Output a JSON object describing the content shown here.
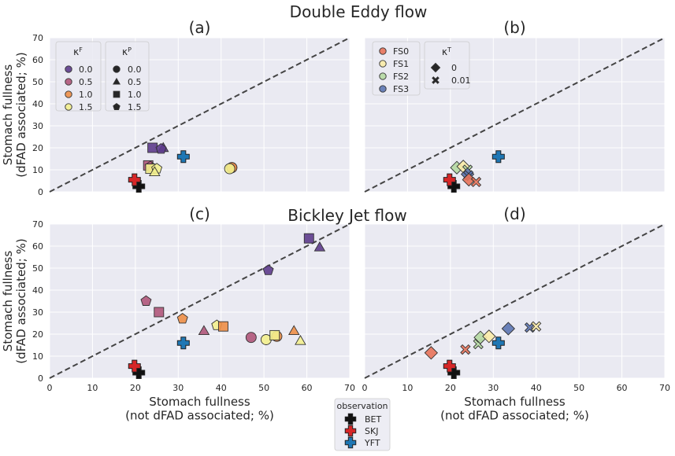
{
  "figure": {
    "suptitle_top": "Double Eddy flow",
    "suptitle_middle": "Bickley Jet flow"
  },
  "colors": {
    "panel_bg": "#EAEAF2",
    "grid": "#FFFFFF",
    "kF": {
      "0.0": "#5E3C8C",
      "0.5": "#B0567A",
      "1.0": "#EE8F47",
      "1.5": "#F3EF8E"
    },
    "FS": {
      "FS0": "#E8735A",
      "FS1": "#FAEBA7",
      "FS2": "#B5D9A2",
      "FS3": "#5C75B3"
    },
    "obs": {
      "BET": "#111111",
      "SKJ": "#D62728",
      "YFT": "#1F77B4"
    },
    "kT_marker": "#111111"
  },
  "legends": {
    "kF": {
      "title": "κ",
      "title_sup": "F",
      "items": [
        "0.0",
        "0.5",
        "1.0",
        "1.5"
      ]
    },
    "kP": {
      "title": "κ",
      "title_sup": "P",
      "items": [
        {
          "label": "0.0",
          "marker": "circle"
        },
        {
          "label": "0.5",
          "marker": "triangle"
        },
        {
          "label": "1.0",
          "marker": "square"
        },
        {
          "label": "1.5",
          "marker": "pentagon"
        }
      ]
    },
    "FS": {
      "items": [
        "FS0",
        "FS1",
        "FS2",
        "FS3"
      ]
    },
    "kT": {
      "title": "κ",
      "title_sup": "T",
      "items": [
        {
          "label": "0",
          "marker": "diamond"
        },
        {
          "label": "0.01",
          "marker": "x"
        }
      ]
    },
    "observation": {
      "title": "observation",
      "items": [
        "BET",
        "SKJ",
        "YFT"
      ]
    }
  },
  "chart_data": [
    {
      "panel": "(a)",
      "type": "scatter",
      "title": "(a)",
      "xlabel": "",
      "ylabel": [
        "Stomach fullness",
        "(dFAD associated; %)"
      ],
      "xlim": [
        0,
        70
      ],
      "ylim": [
        0,
        70
      ],
      "xticks": [
        0,
        10,
        20,
        30,
        40,
        50,
        60,
        70
      ],
      "yticks": [
        0,
        10,
        20,
        30,
        40,
        50,
        60,
        70
      ],
      "show_xticklabels": false,
      "show_yticklabels": true,
      "grid": true,
      "reference_line": "y = x (dashed)",
      "points": [
        {
          "x": 26.5,
          "y": 20,
          "kF": "0.0",
          "kP": "triangle"
        },
        {
          "x": 24,
          "y": 20,
          "kF": "0.0",
          "kP": "square"
        },
        {
          "x": 26,
          "y": 19.5,
          "kF": "0.0",
          "kP": "pentagon"
        },
        {
          "x": 23,
          "y": 12,
          "kF": "0.5",
          "kP": "square"
        },
        {
          "x": 23.5,
          "y": 11.5,
          "kF": "0.5",
          "kP": "pentagon"
        },
        {
          "x": 24,
          "y": 11,
          "kF": "1.0",
          "kP": "triangle"
        },
        {
          "x": 23.5,
          "y": 10.5,
          "kF": "1.5",
          "kP": "square"
        },
        {
          "x": 25,
          "y": 10.5,
          "kF": "1.5",
          "kP": "pentagon"
        },
        {
          "x": 24.5,
          "y": 9,
          "kF": "1.5",
          "kP": "triangle"
        },
        {
          "x": 42.5,
          "y": 11,
          "kF": "0.5",
          "kP": "circle"
        },
        {
          "x": 42.5,
          "y": 11,
          "kF": "1.0",
          "kP": "circle"
        },
        {
          "x": 42,
          "y": 10.5,
          "kF": "1.5",
          "kP": "circle"
        }
      ],
      "observations": [
        {
          "name": "BET",
          "x": 20.8,
          "y": 2.5
        },
        {
          "name": "SKJ",
          "x": 19.8,
          "y": 5.5
        },
        {
          "name": "YFT",
          "x": 31.2,
          "y": 16
        }
      ],
      "legends": [
        "kF",
        "kP"
      ]
    },
    {
      "panel": "(b)",
      "type": "scatter",
      "title": "(b)",
      "xlabel": "",
      "ylabel": "",
      "xlim": [
        0,
        70
      ],
      "ylim": [
        0,
        70
      ],
      "xticks": [
        0,
        10,
        20,
        30,
        40,
        50,
        60,
        70
      ],
      "yticks": [
        0,
        10,
        20,
        30,
        40,
        50,
        60,
        70
      ],
      "show_xticklabels": false,
      "show_yticklabels": false,
      "grid": true,
      "reference_line": "y = x (dashed)",
      "points": [
        {
          "x": 21.5,
          "y": 11,
          "FS": "FS2",
          "kT": "diamond"
        },
        {
          "x": 23,
          "y": 11.5,
          "FS": "FS1",
          "kT": "diamond"
        },
        {
          "x": 24,
          "y": 10,
          "FS": "FS2",
          "kT": "x"
        },
        {
          "x": 24,
          "y": 8,
          "FS": "FS3",
          "kT": "diamond"
        },
        {
          "x": 24.2,
          "y": 7.5,
          "FS": "FS3",
          "kT": "x"
        },
        {
          "x": 24.3,
          "y": 5.5,
          "FS": "FS0",
          "kT": "diamond"
        },
        {
          "x": 26,
          "y": 4.5,
          "FS": "FS0",
          "kT": "x"
        }
      ],
      "observations": [
        {
          "name": "BET",
          "x": 20.8,
          "y": 2.5
        },
        {
          "name": "SKJ",
          "x": 19.8,
          "y": 5.5
        },
        {
          "name": "YFT",
          "x": 31.2,
          "y": 16
        }
      ],
      "legends": [
        "FS",
        "kT"
      ]
    },
    {
      "panel": "(c)",
      "type": "scatter",
      "title": "(c)",
      "xlabel": [
        "Stomach fullness",
        "(not dFAD associated; %)"
      ],
      "ylabel": [
        "Stomach fullness",
        "(dFAD associated; %)"
      ],
      "xlim": [
        0,
        70
      ],
      "ylim": [
        0,
        70
      ],
      "xticks": [
        0,
        10,
        20,
        30,
        40,
        50,
        60,
        70
      ],
      "yticks": [
        0,
        10,
        20,
        30,
        40,
        50,
        60,
        70
      ],
      "show_xticklabels": true,
      "show_yticklabels": true,
      "grid": true,
      "reference_line": "y = x (dashed)",
      "points": [
        {
          "x": 60.5,
          "y": 63.5,
          "kF": "0.0",
          "kP": "square"
        },
        {
          "x": 63,
          "y": 59.5,
          "kF": "0.0",
          "kP": "triangle"
        },
        {
          "x": 51,
          "y": 49,
          "kF": "0.0",
          "kP": "pentagon"
        },
        {
          "x": 22.5,
          "y": 35,
          "kF": "0.5",
          "kP": "pentagon"
        },
        {
          "x": 25.5,
          "y": 30,
          "kF": "0.5",
          "kP": "square"
        },
        {
          "x": 31,
          "y": 27,
          "kF": "1.0",
          "kP": "pentagon"
        },
        {
          "x": 39,
          "y": 24,
          "kF": "1.5",
          "kP": "pentagon"
        },
        {
          "x": 40.5,
          "y": 23.5,
          "kF": "1.0",
          "kP": "square"
        },
        {
          "x": 36,
          "y": 21.5,
          "kF": "0.5",
          "kP": "triangle"
        },
        {
          "x": 47,
          "y": 18.5,
          "kF": "0.5",
          "kP": "circle"
        },
        {
          "x": 50.5,
          "y": 17.5,
          "kF": "1.5",
          "kP": "circle"
        },
        {
          "x": 53,
          "y": 19,
          "kF": "1.0",
          "kP": "circle"
        },
        {
          "x": 52.5,
          "y": 19.5,
          "kF": "1.5",
          "kP": "square"
        },
        {
          "x": 57,
          "y": 21.5,
          "kF": "1.0",
          "kP": "triangle"
        },
        {
          "x": 58.5,
          "y": 17,
          "kF": "1.5",
          "kP": "triangle"
        }
      ],
      "observations": [
        {
          "name": "BET",
          "x": 20.8,
          "y": 2.5
        },
        {
          "name": "SKJ",
          "x": 19.8,
          "y": 5.5
        },
        {
          "name": "YFT",
          "x": 31.2,
          "y": 16
        }
      ],
      "legends": []
    },
    {
      "panel": "(d)",
      "type": "scatter",
      "title": "(d)",
      "xlabel": [
        "Stomach fullness",
        "(not dFAD associated; %)"
      ],
      "ylabel": "",
      "xlim": [
        0,
        70
      ],
      "ylim": [
        0,
        70
      ],
      "xticks": [
        0,
        10,
        20,
        30,
        40,
        50,
        60,
        70
      ],
      "yticks": [
        0,
        10,
        20,
        30,
        40,
        50,
        60,
        70
      ],
      "show_xticklabels": true,
      "show_yticklabels": false,
      "grid": true,
      "reference_line": "y = x (dashed)",
      "points": [
        {
          "x": 15.5,
          "y": 11.5,
          "FS": "FS0",
          "kT": "diamond"
        },
        {
          "x": 23.5,
          "y": 13,
          "FS": "FS0",
          "kT": "x"
        },
        {
          "x": 26.5,
          "y": 15.5,
          "FS": "FS2",
          "kT": "x"
        },
        {
          "x": 27,
          "y": 18.5,
          "FS": "FS2",
          "kT": "diamond"
        },
        {
          "x": 29,
          "y": 19,
          "FS": "FS1",
          "kT": "diamond"
        },
        {
          "x": 33.5,
          "y": 22.5,
          "FS": "FS3",
          "kT": "diamond"
        },
        {
          "x": 38.5,
          "y": 23,
          "FS": "FS3",
          "kT": "x"
        },
        {
          "x": 40,
          "y": 23.5,
          "FS": "FS1",
          "kT": "x"
        }
      ],
      "observations": [
        {
          "name": "BET",
          "x": 20.8,
          "y": 2.5
        },
        {
          "name": "SKJ",
          "x": 19.8,
          "y": 5.5
        },
        {
          "name": "YFT",
          "x": 31.2,
          "y": 16
        }
      ],
      "legends": []
    }
  ]
}
